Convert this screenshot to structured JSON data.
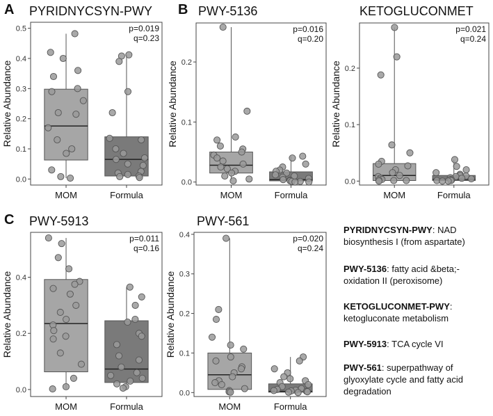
{
  "panel_letters": [
    "A",
    "B",
    "C"
  ],
  "chart_data": [
    {
      "type": "box",
      "title": "PYRIDNYCSYN-PWY",
      "ylabel": "Relative Abundance",
      "categories": [
        "MOM",
        "Formula"
      ],
      "ylim": [
        -0.02,
        0.52
      ],
      "yticks": [
        "0.0",
        "0.1",
        "0.2",
        "0.3",
        "0.4",
        "0.5"
      ],
      "stats": [
        "p=0.019",
        "q=0.23"
      ],
      "boxes": [
        {
          "name": "MOM",
          "q1": 0.063,
          "median": 0.176,
          "q3": 0.298,
          "color": "#a6a6a6"
        },
        {
          "name": "Formula",
          "q1": 0.01,
          "median": 0.065,
          "q3": 0.14,
          "color": "#7a7a7a"
        }
      ],
      "points": [
        [
          0.482,
          0.42,
          0.4,
          0.36,
          0.34,
          0.3,
          0.29,
          0.26,
          0.22,
          0.215,
          0.17,
          0.13,
          0.1,
          0.085,
          0.03,
          0.008,
          0.003
        ],
        [
          0.412,
          0.408,
          0.39,
          0.29,
          0.22,
          0.135,
          0.13,
          0.1,
          0.085,
          0.07,
          0.065,
          0.05,
          0.045,
          0.025,
          0.02,
          0.015,
          0.01,
          0.008,
          0.005
        ]
      ]
    },
    {
      "type": "box",
      "title": "PWY-5136",
      "ylabel": "Relative Abundance",
      "categories": [
        "MOM",
        "Formula"
      ],
      "ylim": [
        -0.005,
        0.265
      ],
      "yticks": [
        "0.0",
        "0.1",
        "0.2"
      ],
      "stats": [
        "p=0.016",
        "q=0.20"
      ],
      "boxes": [
        {
          "name": "MOM",
          "q1": 0.015,
          "median": 0.028,
          "q3": 0.05,
          "color": "#a6a6a6"
        },
        {
          "name": "Formula",
          "q1": 0.002,
          "median": 0.004,
          "q3": 0.017,
          "color": "#7a7a7a"
        }
      ],
      "points": [
        [
          0.258,
          0.118,
          0.075,
          0.07,
          0.06,
          0.055,
          0.05,
          0.045,
          0.04,
          0.035,
          0.03,
          0.025,
          0.022,
          0.018,
          0.015,
          0.01,
          0.005,
          0.002
        ],
        [
          0.043,
          0.04,
          0.03,
          0.025,
          0.02,
          0.018,
          0.015,
          0.012,
          0.01,
          0.008,
          0.006,
          0.004,
          0.003,
          0.002,
          0.001,
          0.001,
          0.0,
          0.0
        ]
      ]
    },
    {
      "type": "box",
      "title": "KETOGLUCONMET",
      "ylabel": "Relative Abundance",
      "categories": [
        "MOM",
        "Formula"
      ],
      "ylim": [
        -0.007,
        0.28
      ],
      "yticks": [
        "0.0",
        "0.1",
        "0.2"
      ],
      "stats": [
        "p=0.021",
        "q=0.24"
      ],
      "boxes": [
        {
          "name": "MOM",
          "q1": 0.001,
          "median": 0.01,
          "q3": 0.031,
          "color": "#a6a6a6"
        },
        {
          "name": "Formula",
          "q1": 0.001,
          "median": 0.003,
          "q3": 0.01,
          "color": "#7a7a7a"
        }
      ],
      "points": [
        [
          0.272,
          0.22,
          0.188,
          0.064,
          0.05,
          0.035,
          0.03,
          0.027,
          0.02,
          0.015,
          0.01,
          0.008,
          0.005,
          0.003,
          0.002,
          0.001,
          0.001,
          0.0
        ],
        [
          0.038,
          0.026,
          0.02,
          0.015,
          0.012,
          0.01,
          0.009,
          0.008,
          0.006,
          0.005,
          0.004,
          0.003,
          0.002,
          0.001,
          0.001,
          0.0,
          0.0
        ]
      ]
    },
    {
      "type": "box",
      "title": "PWY-5913",
      "ylabel": "Relative Abundance",
      "categories": [
        "MOM",
        "Formula"
      ],
      "ylim": [
        -0.025,
        0.56
      ],
      "yticks": [
        "0.0",
        "0.2",
        "0.4"
      ],
      "stats": [
        "p=0.011",
        "q=0.16"
      ],
      "boxes": [
        {
          "name": "MOM",
          "q1": 0.063,
          "median": 0.235,
          "q3": 0.392,
          "color": "#a6a6a6"
        },
        {
          "name": "Formula",
          "q1": 0.025,
          "median": 0.073,
          "q3": 0.245,
          "color": "#7a7a7a"
        }
      ],
      "points": [
        [
          0.54,
          0.52,
          0.47,
          0.43,
          0.385,
          0.375,
          0.36,
          0.34,
          0.3,
          0.275,
          0.25,
          0.23,
          0.21,
          0.19,
          0.18,
          0.13,
          0.09,
          0.04,
          0.01,
          0.002
        ],
        [
          0.365,
          0.33,
          0.3,
          0.25,
          0.24,
          0.2,
          0.19,
          0.16,
          0.12,
          0.105,
          0.08,
          0.06,
          0.05,
          0.04,
          0.03,
          0.02,
          0.01,
          0.005
        ]
      ]
    },
    {
      "type": "box",
      "title": "PWY-561",
      "ylabel": "Relative Abundance",
      "categories": [
        "MOM",
        "Formula"
      ],
      "ylim": [
        -0.01,
        0.405
      ],
      "yticks": [
        "0.0",
        "0.1",
        "0.2",
        "0.3",
        "0.4"
      ],
      "stats": [
        "p=0.020",
        "q=0.24"
      ],
      "boxes": [
        {
          "name": "MOM",
          "q1": 0.008,
          "median": 0.045,
          "q3": 0.1,
          "color": "#a6a6a6"
        },
        {
          "name": "Formula",
          "q1": 0.001,
          "median": 0.003,
          "q3": 0.022,
          "color": "#7a7a7a"
        }
      ],
      "points": [
        [
          0.39,
          0.21,
          0.185,
          0.14,
          0.12,
          0.11,
          0.09,
          0.08,
          0.065,
          0.06,
          0.05,
          0.04,
          0.03,
          0.025,
          0.02,
          0.01,
          0.005,
          0.002,
          0.001
        ],
        [
          0.09,
          0.08,
          0.06,
          0.05,
          0.04,
          0.035,
          0.03,
          0.025,
          0.02,
          0.015,
          0.01,
          0.008,
          0.006,
          0.005,
          0.004,
          0.003,
          0.002,
          0.001,
          0.0
        ]
      ]
    }
  ],
  "legend": [
    {
      "name": "PYRIDNYCSYN-PWY",
      "desc": ": NAD biosynthesis I (from aspartate)"
    },
    {
      "name": "PWY-5136",
      "desc": ":  fatty acid &beta;-oxidation II (peroxisome)"
    },
    {
      "name": "KETOGLUCONMET-PWY",
      "desc": ": ketogluconate metabolism"
    },
    {
      "name": "PWY-5913",
      "desc": ": TCA cycle VI"
    },
    {
      "name": "PWY-561",
      "desc": ": superpathway of glyoxylate cycle and fatty acid degradation"
    }
  ]
}
